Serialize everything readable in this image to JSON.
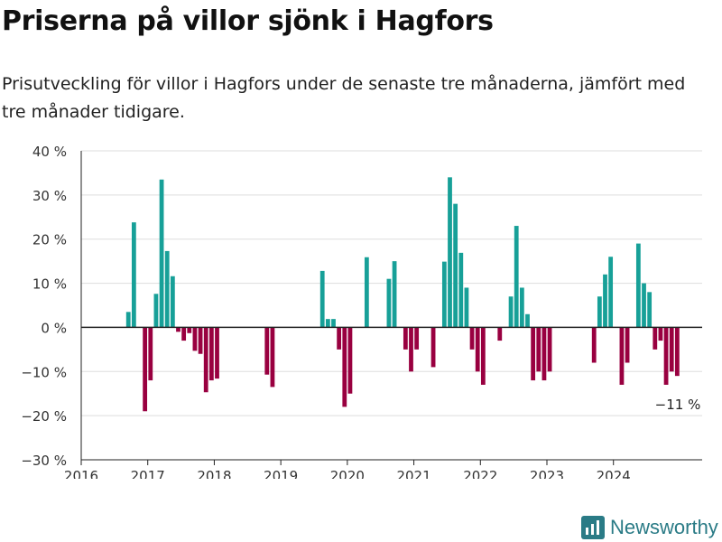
{
  "title": "Priserna på villor sjönk i Hagfors",
  "subtitle": "Prisutveckling för villor i Hagfors under de senaste tre månaderna, jämfört med tre månader tidigare.",
  "brand": "Newsworthy",
  "colors": {
    "positive": "#17a098",
    "negative": "#990040",
    "grid": "#dddddd",
    "axis": "#222222",
    "text": "#333333"
  },
  "chart_data": {
    "type": "bar",
    "ylim": [
      -30,
      40
    ],
    "yticks": [
      40,
      30,
      20,
      10,
      0,
      -10,
      -20,
      -30
    ],
    "ytick_labels": [
      "40 %",
      "30 %",
      "20 %",
      "10 %",
      "0 %",
      "−10 %",
      "−20 %",
      "−30 %"
    ],
    "xlim": [
      "2016-01",
      "2025-05"
    ],
    "xticks": [
      "2016",
      "2017",
      "2018",
      "2019",
      "2020",
      "2021",
      "2022",
      "2023",
      "2024"
    ],
    "annotation": {
      "text": "−11 %",
      "month": "2024-12",
      "value": -11
    },
    "series": [
      {
        "points": [
          {
            "month": "2016-09",
            "value": 3.5
          },
          {
            "month": "2016-10",
            "value": 23.8
          },
          {
            "month": "2016-12",
            "value": -19
          },
          {
            "month": "2017-01",
            "value": -12
          },
          {
            "month": "2017-02",
            "value": 7.6
          },
          {
            "month": "2017-03",
            "value": 33.5
          },
          {
            "month": "2017-04",
            "value": 17.3
          },
          {
            "month": "2017-05",
            "value": 11.6
          },
          {
            "month": "2017-06",
            "value": -1
          },
          {
            "month": "2017-07",
            "value": -3
          },
          {
            "month": "2017-08",
            "value": -1.3
          },
          {
            "month": "2017-09",
            "value": -5.3
          },
          {
            "month": "2017-10",
            "value": -6
          },
          {
            "month": "2017-11",
            "value": -14.7
          },
          {
            "month": "2017-12",
            "value": -12
          },
          {
            "month": "2018-01",
            "value": -11.6
          },
          {
            "month": "2018-10",
            "value": -10.7
          },
          {
            "month": "2018-11",
            "value": -13.5
          },
          {
            "month": "2019-08",
            "value": 12.8
          },
          {
            "month": "2019-09",
            "value": 1.9
          },
          {
            "month": "2019-10",
            "value": 1.9
          },
          {
            "month": "2019-11",
            "value": -5
          },
          {
            "month": "2019-12",
            "value": -18
          },
          {
            "month": "2020-01",
            "value": -15
          },
          {
            "month": "2020-04",
            "value": 15.9
          },
          {
            "month": "2020-08",
            "value": 11
          },
          {
            "month": "2020-09",
            "value": 15
          },
          {
            "month": "2020-11",
            "value": -5
          },
          {
            "month": "2020-12",
            "value": -10
          },
          {
            "month": "2021-01",
            "value": -5
          },
          {
            "month": "2021-04",
            "value": -9
          },
          {
            "month": "2021-06",
            "value": 14.9
          },
          {
            "month": "2021-07",
            "value": 34
          },
          {
            "month": "2021-08",
            "value": 28
          },
          {
            "month": "2021-09",
            "value": 16.9
          },
          {
            "month": "2021-10",
            "value": 9
          },
          {
            "month": "2021-11",
            "value": -5
          },
          {
            "month": "2021-12",
            "value": -10
          },
          {
            "month": "2022-01",
            "value": -13
          },
          {
            "month": "2022-04",
            "value": -3
          },
          {
            "month": "2022-06",
            "value": 7
          },
          {
            "month": "2022-07",
            "value": 23
          },
          {
            "month": "2022-08",
            "value": 9
          },
          {
            "month": "2022-09",
            "value": 3
          },
          {
            "month": "2022-10",
            "value": -12
          },
          {
            "month": "2022-11",
            "value": -10
          },
          {
            "month": "2022-12",
            "value": -12
          },
          {
            "month": "2023-01",
            "value": -10
          },
          {
            "month": "2023-09",
            "value": -8
          },
          {
            "month": "2023-10",
            "value": 7
          },
          {
            "month": "2023-11",
            "value": 12
          },
          {
            "month": "2023-12",
            "value": 16
          },
          {
            "month": "2024-02",
            "value": -13
          },
          {
            "month": "2024-03",
            "value": -8
          },
          {
            "month": "2024-05",
            "value": 19
          },
          {
            "month": "2024-06",
            "value": 10
          },
          {
            "month": "2024-07",
            "value": 8
          },
          {
            "month": "2024-08",
            "value": -5
          },
          {
            "month": "2024-09",
            "value": -3
          },
          {
            "month": "2024-10",
            "value": -13
          },
          {
            "month": "2024-11",
            "value": -10
          },
          {
            "month": "2024-12",
            "value": -11
          }
        ]
      }
    ]
  }
}
